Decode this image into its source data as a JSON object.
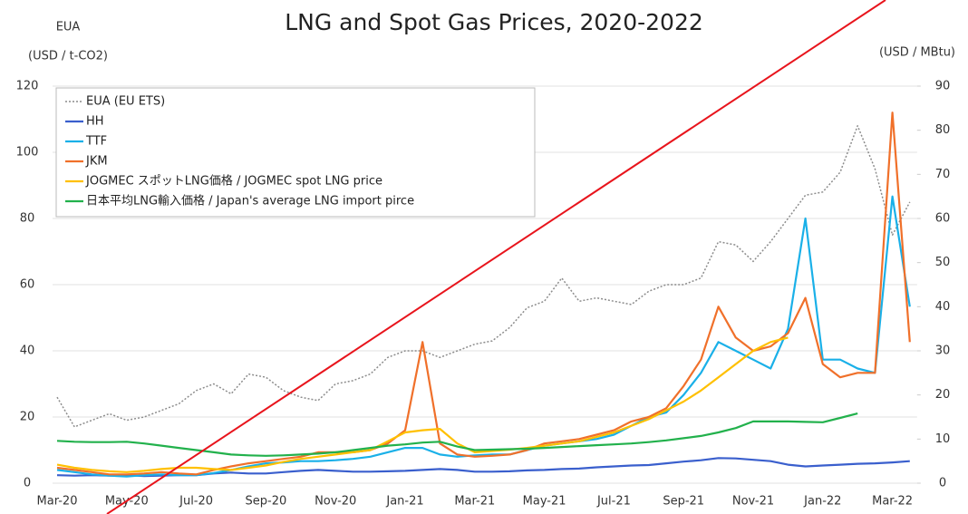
{
  "chart_data": {
    "type": "line",
    "title": "LNG and Spot Gas Prices, 2020-2022",
    "ylabel": "EUA",
    "ylabel_unit": "(USD / t-CO2)",
    "y2label": "(USD / MBtu)",
    "categories": [
      "Mar-20",
      null,
      null,
      null,
      "May-20",
      null,
      null,
      null,
      "Jul-20",
      null,
      null,
      null,
      "Sep-20",
      null,
      null,
      null,
      "Nov-20",
      null,
      null,
      null,
      "Jan-21",
      null,
      null,
      null,
      "Mar-21",
      null,
      null,
      null,
      "May-21",
      null,
      null,
      null,
      "Jul-21",
      null,
      null,
      null,
      "Sep-21",
      null,
      null,
      null,
      "Nov-21",
      null,
      null,
      null,
      "Jan-22",
      null,
      null,
      null,
      "Mar-22",
      null
    ],
    "ylim": [
      0,
      120
    ],
    "yticks": [
      0,
      20,
      40,
      60,
      80,
      100,
      120
    ],
    "y2lim": [
      0,
      90
    ],
    "y2ticks": [
      0,
      10,
      20,
      30,
      40,
      50,
      60,
      70,
      80,
      90
    ],
    "grid": true,
    "legend": "upper left",
    "series": [
      {
        "name": "EUA (EU ETS)",
        "color": "#8c8c8c",
        "dashed": true,
        "axis": "y",
        "values": [
          26,
          17,
          19,
          21,
          19,
          20,
          22,
          24,
          28,
          30,
          27,
          33,
          32,
          28,
          26,
          25,
          30,
          31,
          33,
          38,
          40,
          40,
          38,
          40,
          42,
          43,
          47,
          53,
          55,
          62,
          55,
          56,
          55,
          54,
          58,
          60,
          60,
          62,
          73,
          72,
          67,
          73,
          80,
          87,
          88,
          94,
          108,
          95,
          75,
          85
        ]
      },
      {
        "name": "HH",
        "color": "#3a5fcd",
        "axis": "y2",
        "values": [
          1.8,
          1.7,
          1.8,
          1.7,
          1.8,
          1.6,
          1.7,
          1.8,
          1.8,
          2.2,
          2.4,
          2.2,
          2.2,
          2.5,
          2.8,
          3.0,
          2.8,
          2.6,
          2.6,
          2.7,
          2.8,
          3.0,
          3.2,
          3.0,
          2.6,
          2.6,
          2.7,
          2.9,
          3.0,
          3.2,
          3.3,
          3.6,
          3.8,
          4.0,
          4.1,
          4.5,
          4.9,
          5.2,
          5.7,
          5.6,
          5.3,
          5.0,
          4.2,
          3.8,
          4.0,
          4.2,
          4.4,
          4.5,
          4.7,
          5.0
        ]
      },
      {
        "name": "TTF",
        "color": "#1ab0e8",
        "axis": "y2",
        "values": [
          3,
          2.5,
          2,
          1.7,
          1.5,
          1.8,
          2,
          1.8,
          1.8,
          2.3,
          3,
          3.8,
          4.5,
          4.7,
          5,
          5,
          5.2,
          5.5,
          6,
          7,
          8,
          8,
          6.5,
          6,
          6.3,
          6.5,
          6.5,
          7.5,
          8.5,
          9,
          9.5,
          10,
          11,
          13,
          15,
          16,
          20,
          25,
          32,
          30,
          28,
          26,
          35,
          60,
          28,
          28,
          26,
          25,
          65,
          40
        ]
      },
      {
        "name": "JKM",
        "color": "#f0702a",
        "axis": "y2",
        "values": [
          3.5,
          3,
          2.5,
          2,
          2,
          2.2,
          2.5,
          2.2,
          2,
          3,
          3.8,
          4.5,
          5,
          5.5,
          6,
          7,
          7,
          7,
          7.5,
          9,
          12,
          32,
          9,
          6.5,
          6,
          6.2,
          6.5,
          7.5,
          9,
          9.5,
          10,
          11,
          12,
          14,
          15,
          17,
          22,
          28,
          40,
          33,
          30,
          31,
          34,
          42,
          27,
          24,
          25,
          25,
          84,
          32
        ]
      },
      {
        "name": "JOGMEC スポットLNG価格 / JOGMEC spot LNG price",
        "color": "#ffc000",
        "axis": "y2",
        "values": [
          4.2,
          3.5,
          3,
          2.7,
          2.5,
          2.8,
          3.2,
          3.5,
          3.5,
          3.2,
          3,
          3.5,
          4,
          4.8,
          5.5,
          6,
          6.5,
          7,
          7.5,
          9.5,
          11.5,
          12,
          12.3,
          9,
          7,
          7.3,
          7.6,
          8,
          8.5,
          9,
          9.5,
          10.5,
          11.5,
          13,
          14.5,
          16.5,
          18.5,
          21,
          24,
          27,
          30,
          32,
          33,
          null,
          null,
          null,
          null,
          null,
          null,
          null
        ]
      },
      {
        "name": "日本平均LNG輸入価格 / Japan's average LNG import pirce",
        "color": "#22b14c",
        "axis": "y2",
        "values": [
          9.6,
          9.4,
          9.3,
          9.3,
          9.4,
          9.0,
          8.5,
          8.0,
          7.5,
          7.0,
          6.5,
          6.3,
          6.2,
          6.3,
          6.5,
          6.7,
          7.0,
          7.5,
          8.0,
          8.5,
          8.8,
          9.2,
          9.4,
          8.3,
          7.5,
          7.6,
          7.7,
          7.8,
          8.0,
          8.2,
          8.4,
          8.6,
          8.8,
          9.0,
          9.3,
          9.7,
          10.2,
          10.7,
          11.5,
          12.5,
          14,
          14,
          14,
          13.9,
          13.8,
          14.8,
          15.8,
          null,
          null,
          null
        ]
      }
    ]
  }
}
